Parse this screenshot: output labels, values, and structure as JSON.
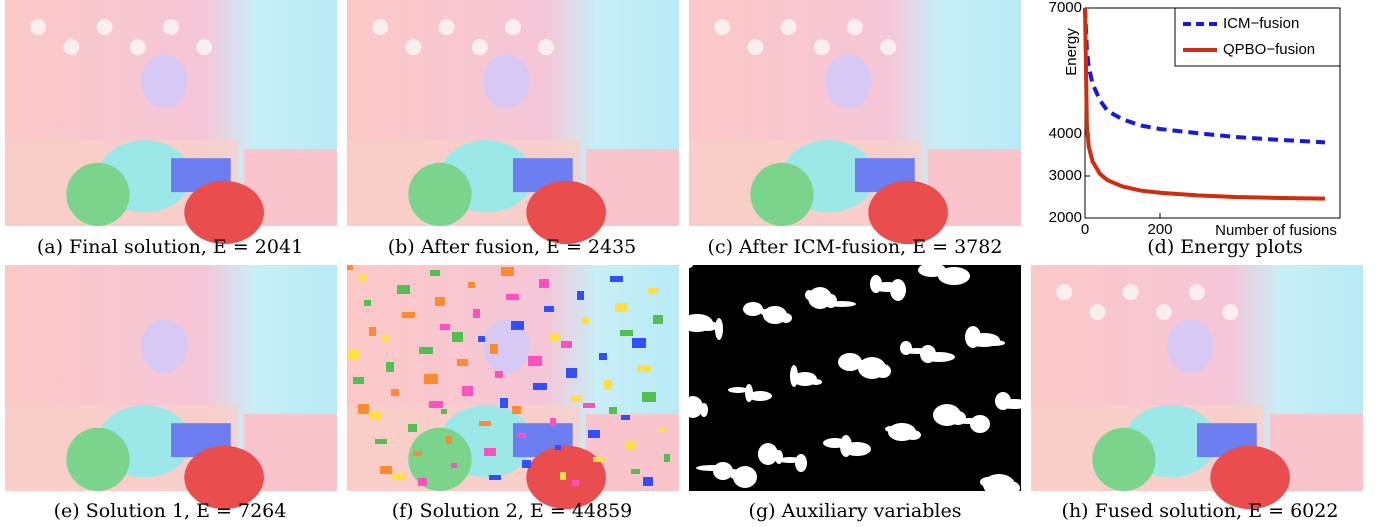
{
  "captions": {
    "a": "(a) Final solution, E = 2041",
    "b": "(b) After fusion, E = 2435",
    "c": "(c) After ICM-fusion, E = 3782",
    "d": "(d) Energy plots",
    "e": "(e) Solution 1, E = 7264",
    "f": "(f) Solution 2, E = 44859",
    "g": "(g) Auxiliary variables",
    "h": "(h) Fused solution, E = 6022"
  },
  "chart_data": {
    "type": "line",
    "y_label": "Energy",
    "x_label": "Number of fusions",
    "x": [
      0,
      5,
      10,
      20,
      40,
      60,
      100,
      150,
      200,
      300,
      400,
      500,
      640
    ],
    "series": [
      {
        "name": "ICM−fusion",
        "color": "#1818e0",
        "linestyle": "dashed",
        "values": [
          7000,
          6000,
          5600,
          5200,
          4800,
          4550,
          4350,
          4200,
          4120,
          4020,
          3930,
          3870,
          3800
        ]
      },
      {
        "name": "QPBO−fusion",
        "color": "#d22c10",
        "linestyle": "solid",
        "values": [
          7000,
          4200,
          3700,
          3350,
          3050,
          2900,
          2750,
          2650,
          2600,
          2540,
          2500,
          2480,
          2460
        ]
      }
    ],
    "xlim": [
      0,
      680
    ],
    "ylim": [
      2000,
      7000
    ],
    "xticks": [
      0,
      200
    ],
    "yticks": [
      2000,
      3000,
      4000,
      7000
    ],
    "legend": "upper right"
  }
}
